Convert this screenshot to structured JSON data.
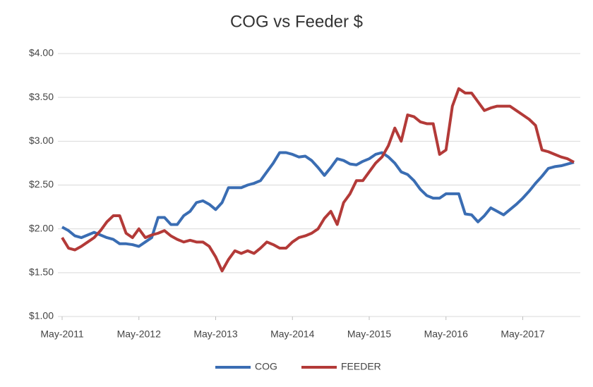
{
  "chart_data": {
    "type": "line",
    "title": "COG vs Feeder $",
    "x": [
      "2011-05",
      "2011-06",
      "2011-07",
      "2011-08",
      "2011-09",
      "2011-10",
      "2011-11",
      "2011-12",
      "2012-01",
      "2012-02",
      "2012-03",
      "2012-04",
      "2012-05",
      "2012-06",
      "2012-07",
      "2012-08",
      "2012-09",
      "2012-10",
      "2012-11",
      "2012-12",
      "2013-01",
      "2013-02",
      "2013-03",
      "2013-04",
      "2013-05",
      "2013-06",
      "2013-07",
      "2013-08",
      "2013-09",
      "2013-10",
      "2013-11",
      "2013-12",
      "2014-01",
      "2014-02",
      "2014-03",
      "2014-04",
      "2014-05",
      "2014-06",
      "2014-07",
      "2014-08",
      "2014-09",
      "2014-10",
      "2014-11",
      "2014-12",
      "2015-01",
      "2015-02",
      "2015-03",
      "2015-04",
      "2015-05",
      "2015-06",
      "2015-07",
      "2015-08",
      "2015-09",
      "2015-10",
      "2015-11",
      "2015-12",
      "2016-01",
      "2016-02",
      "2016-03",
      "2016-04",
      "2016-05",
      "2016-06",
      "2016-07",
      "2016-08",
      "2016-09",
      "2016-10",
      "2016-11",
      "2016-12",
      "2017-01",
      "2017-02",
      "2017-03",
      "2017-04",
      "2017-05",
      "2017-06",
      "2017-07",
      "2017-08",
      "2017-09",
      "2017-10",
      "2017-11",
      "2017-12",
      "2018-01"
    ],
    "series": [
      {
        "name": "COG",
        "color": "#3a6db3",
        "values": [
          2.02,
          1.98,
          1.92,
          1.9,
          1.93,
          1.96,
          1.93,
          1.9,
          1.88,
          1.83,
          1.83,
          1.82,
          1.8,
          1.85,
          1.9,
          2.13,
          2.13,
          2.05,
          2.05,
          2.15,
          2.2,
          2.3,
          2.32,
          2.28,
          2.22,
          2.3,
          2.47,
          2.47,
          2.47,
          2.5,
          2.52,
          2.55,
          2.65,
          2.75,
          2.87,
          2.87,
          2.85,
          2.82,
          2.83,
          2.78,
          2.7,
          2.61,
          2.7,
          2.8,
          2.78,
          2.74,
          2.73,
          2.77,
          2.8,
          2.85,
          2.87,
          2.82,
          2.75,
          2.65,
          2.62,
          2.55,
          2.45,
          2.38,
          2.35,
          2.35,
          2.4,
          2.4,
          2.4,
          2.17,
          2.16,
          2.08,
          2.15,
          2.24,
          2.2,
          2.16,
          2.22,
          2.28,
          2.35,
          2.43,
          2.52,
          2.6,
          2.69,
          2.71,
          2.72,
          2.74,
          2.76
        ]
      },
      {
        "name": "FEEDER",
        "color": "#b33a38",
        "values": [
          1.9,
          1.78,
          1.76,
          1.8,
          1.85,
          1.9,
          1.98,
          2.08,
          2.15,
          2.15,
          1.95,
          1.9,
          2.0,
          1.9,
          1.93,
          1.95,
          1.98,
          1.92,
          1.88,
          1.85,
          1.87,
          1.85,
          1.85,
          1.8,
          1.68,
          1.52,
          1.65,
          1.75,
          1.72,
          1.75,
          1.72,
          1.78,
          1.85,
          1.82,
          1.78,
          1.78,
          1.85,
          1.9,
          1.92,
          1.95,
          2.0,
          2.12,
          2.2,
          2.05,
          2.3,
          2.4,
          2.55,
          2.55,
          2.65,
          2.75,
          2.82,
          2.95,
          3.15,
          3.0,
          3.3,
          3.28,
          3.22,
          3.2,
          3.2,
          2.85,
          2.9,
          3.4,
          3.6,
          3.55,
          3.55,
          3.45,
          3.35,
          3.38,
          3.4,
          3.4,
          3.4,
          3.35,
          3.3,
          3.25,
          3.18,
          2.9,
          2.88,
          2.85,
          2.82,
          2.8,
          2.76
        ]
      }
    ],
    "xlim": [
      "2011-05",
      "2018-01"
    ],
    "xticks": [
      {
        "value": "2011-05",
        "label": "May-2011"
      },
      {
        "value": "2012-05",
        "label": "May-2012"
      },
      {
        "value": "2013-05",
        "label": "May-2013"
      },
      {
        "value": "2014-05",
        "label": "May-2014"
      },
      {
        "value": "2015-05",
        "label": "May-2015"
      },
      {
        "value": "2016-05",
        "label": "May-2016"
      },
      {
        "value": "2017-05",
        "label": "May-2017"
      }
    ],
    "ylim": [
      1,
      4
    ],
    "yticks": [
      {
        "value": 1,
        "label": "$1.00"
      },
      {
        "value": 1.5,
        "label": "$1.50"
      },
      {
        "value": 2,
        "label": "$2.00"
      },
      {
        "value": 2.5,
        "label": "$2.50"
      },
      {
        "value": 3,
        "label": "$3.00"
      },
      {
        "value": 3.5,
        "label": "$3.50"
      },
      {
        "value": 4,
        "label": "$4.00"
      }
    ],
    "grid": true,
    "legend": "bottom"
  }
}
